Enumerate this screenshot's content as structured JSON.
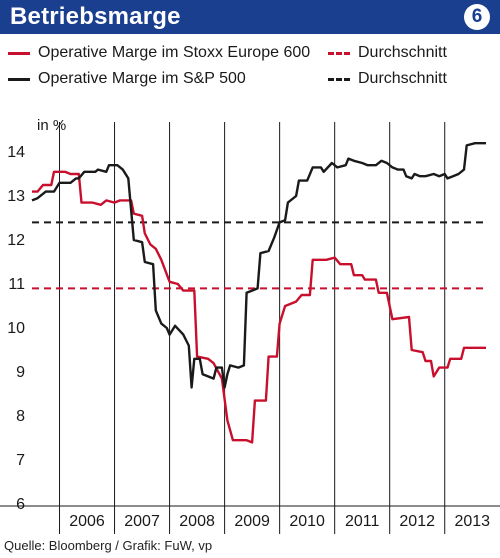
{
  "header": {
    "title": "Betriebsmarge",
    "badge": "6",
    "background": "#1b3f8f"
  },
  "legend": [
    {
      "label": "Operative Marge im Stoxx Europe 600",
      "color": "#c8102e",
      "style": "solid"
    },
    {
      "label": "Durchschnitt",
      "color": "#c8102e",
      "style": "dashed"
    },
    {
      "label": "Operative Marge im S&P 500",
      "color": "#1a1a1a",
      "style": "solid"
    },
    {
      "label": "Durchschnitt",
      "color": "#1a1a1a",
      "style": "dashed"
    }
  ],
  "source": "Quelle: Bloomberg / Grafik: FuW, vp",
  "chart_data": {
    "type": "line",
    "title": "Betriebsmarge",
    "ylabel": "in %",
    "ylim": [
      6,
      14.5
    ],
    "yticks": [
      6,
      7,
      8,
      9,
      10,
      11,
      12,
      13,
      14
    ],
    "xlim": [
      2005.5,
      2013.75
    ],
    "xtick_labels": [
      "2006",
      "2007",
      "2008",
      "2009",
      "2010",
      "2011",
      "2012",
      "2013"
    ],
    "grid": "vertical year lines",
    "series": [
      {
        "name": "Operative Marge im Stoxx Europe 600",
        "color": "#c8102e",
        "points": [
          [
            2005.5,
            13.1
          ],
          [
            2005.6,
            13.1
          ],
          [
            2005.7,
            13.25
          ],
          [
            2005.85,
            13.25
          ],
          [
            2005.9,
            13.55
          ],
          [
            2006.1,
            13.55
          ],
          [
            2006.2,
            13.5
          ],
          [
            2006.35,
            13.5
          ],
          [
            2006.4,
            12.85
          ],
          [
            2006.6,
            12.85
          ],
          [
            2006.75,
            12.8
          ],
          [
            2006.85,
            12.9
          ],
          [
            2007.0,
            12.85
          ],
          [
            2007.1,
            12.9
          ],
          [
            2007.3,
            12.9
          ],
          [
            2007.35,
            12.6
          ],
          [
            2007.5,
            12.55
          ],
          [
            2007.55,
            12.15
          ],
          [
            2007.65,
            11.9
          ],
          [
            2007.75,
            11.8
          ],
          [
            2007.85,
            11.55
          ],
          [
            2008.0,
            11.05
          ],
          [
            2008.15,
            11.0
          ],
          [
            2008.25,
            10.85
          ],
          [
            2008.45,
            10.85
          ],
          [
            2008.5,
            9.35
          ],
          [
            2008.7,
            9.3
          ],
          [
            2008.8,
            9.2
          ],
          [
            2008.95,
            8.85
          ],
          [
            2009.05,
            7.9
          ],
          [
            2009.15,
            7.45
          ],
          [
            2009.4,
            7.45
          ],
          [
            2009.5,
            7.4
          ],
          [
            2009.55,
            8.35
          ],
          [
            2009.75,
            8.35
          ],
          [
            2009.8,
            9.35
          ],
          [
            2009.95,
            9.35
          ],
          [
            2010.0,
            10.1
          ],
          [
            2010.1,
            10.5
          ],
          [
            2010.3,
            10.6
          ],
          [
            2010.4,
            10.75
          ],
          [
            2010.55,
            10.75
          ],
          [
            2010.6,
            11.55
          ],
          [
            2010.85,
            11.55
          ],
          [
            2011.0,
            11.6
          ],
          [
            2011.1,
            11.45
          ],
          [
            2011.3,
            11.45
          ],
          [
            2011.35,
            11.2
          ],
          [
            2011.5,
            11.2
          ],
          [
            2011.55,
            11.1
          ],
          [
            2011.75,
            11.1
          ],
          [
            2011.8,
            10.8
          ],
          [
            2011.95,
            10.8
          ],
          [
            2012.05,
            10.2
          ],
          [
            2012.35,
            10.25
          ],
          [
            2012.4,
            9.5
          ],
          [
            2012.6,
            9.45
          ],
          [
            2012.65,
            9.25
          ],
          [
            2012.75,
            9.25
          ],
          [
            2012.8,
            8.9
          ],
          [
            2012.9,
            9.1
          ],
          [
            2013.05,
            9.1
          ],
          [
            2013.1,
            9.3
          ],
          [
            2013.3,
            9.3
          ],
          [
            2013.35,
            9.55
          ],
          [
            2013.75,
            9.55
          ]
        ]
      },
      {
        "name": "Durchschnitt",
        "color": "#c8102e",
        "dashed": true,
        "points": [
          [
            2005.5,
            10.9
          ],
          [
            2013.75,
            10.9
          ]
        ]
      },
      {
        "name": "Operative Marge im S&P 500",
        "color": "#1a1a1a",
        "points": [
          [
            2005.5,
            12.9
          ],
          [
            2005.6,
            12.95
          ],
          [
            2005.75,
            13.1
          ],
          [
            2005.9,
            13.1
          ],
          [
            2006.0,
            13.3
          ],
          [
            2006.2,
            13.3
          ],
          [
            2006.3,
            13.4
          ],
          [
            2006.35,
            13.4
          ],
          [
            2006.45,
            13.55
          ],
          [
            2006.65,
            13.55
          ],
          [
            2006.7,
            13.6
          ],
          [
            2006.85,
            13.55
          ],
          [
            2006.9,
            13.7
          ],
          [
            2007.05,
            13.7
          ],
          [
            2007.15,
            13.6
          ],
          [
            2007.25,
            13.4
          ],
          [
            2007.35,
            12.0
          ],
          [
            2007.5,
            11.95
          ],
          [
            2007.55,
            11.5
          ],
          [
            2007.7,
            11.45
          ],
          [
            2007.75,
            10.4
          ],
          [
            2007.85,
            10.1
          ],
          [
            2007.95,
            10.0
          ],
          [
            2008.0,
            9.85
          ],
          [
            2008.1,
            10.05
          ],
          [
            2008.25,
            9.85
          ],
          [
            2008.35,
            9.6
          ],
          [
            2008.4,
            8.65
          ],
          [
            2008.45,
            9.3
          ],
          [
            2008.55,
            9.3
          ],
          [
            2008.6,
            8.95
          ],
          [
            2008.7,
            8.9
          ],
          [
            2008.8,
            8.85
          ],
          [
            2008.85,
            9.1
          ],
          [
            2008.95,
            9.1
          ],
          [
            2009.0,
            8.65
          ],
          [
            2009.05,
            8.95
          ],
          [
            2009.1,
            9.15
          ],
          [
            2009.25,
            9.1
          ],
          [
            2009.35,
            9.15
          ],
          [
            2009.4,
            10.8
          ],
          [
            2009.5,
            10.85
          ],
          [
            2009.6,
            10.9
          ],
          [
            2009.65,
            11.7
          ],
          [
            2009.8,
            11.75
          ],
          [
            2009.9,
            12.05
          ],
          [
            2010.0,
            12.4
          ],
          [
            2010.1,
            12.45
          ],
          [
            2010.15,
            12.85
          ],
          [
            2010.3,
            13.0
          ],
          [
            2010.35,
            13.35
          ],
          [
            2010.5,
            13.35
          ],
          [
            2010.6,
            13.65
          ],
          [
            2010.75,
            13.65
          ],
          [
            2010.8,
            13.55
          ],
          [
            2010.95,
            13.75
          ],
          [
            2011.05,
            13.65
          ],
          [
            2011.2,
            13.7
          ],
          [
            2011.25,
            13.85
          ],
          [
            2011.35,
            13.8
          ],
          [
            2011.5,
            13.75
          ],
          [
            2011.6,
            13.7
          ],
          [
            2011.75,
            13.7
          ],
          [
            2011.85,
            13.8
          ],
          [
            2011.95,
            13.75
          ],
          [
            2012.05,
            13.65
          ],
          [
            2012.15,
            13.6
          ],
          [
            2012.25,
            13.6
          ],
          [
            2012.3,
            13.45
          ],
          [
            2012.4,
            13.4
          ],
          [
            2012.45,
            13.5
          ],
          [
            2012.55,
            13.45
          ],
          [
            2012.65,
            13.45
          ],
          [
            2012.8,
            13.5
          ],
          [
            2012.9,
            13.45
          ],
          [
            2013.0,
            13.5
          ],
          [
            2013.05,
            13.4
          ],
          [
            2013.15,
            13.45
          ],
          [
            2013.25,
            13.5
          ],
          [
            2013.35,
            13.6
          ],
          [
            2013.4,
            14.15
          ],
          [
            2013.55,
            14.2
          ],
          [
            2013.75,
            14.2
          ]
        ]
      },
      {
        "name": "Durchschnitt",
        "color": "#1a1a1a",
        "dashed": true,
        "points": [
          [
            2005.5,
            12.4
          ],
          [
            2013.75,
            12.4
          ]
        ]
      }
    ]
  }
}
